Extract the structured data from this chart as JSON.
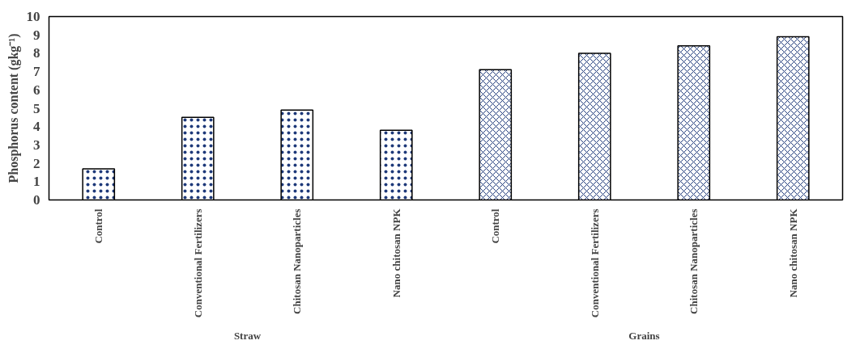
{
  "chart_data": {
    "type": "bar",
    "ylabel": "Phosphorus content (gkg⁻¹)",
    "categories": [
      "Control",
      "Conventional Fertilizers",
      "Chitosan Nanoparticles",
      "Nano chitosan NPK",
      "Control",
      "Conventional Fertilizers",
      "Chitosan Nanoparticles",
      "Nano chitosan NPK"
    ],
    "series": [
      {
        "color": "#ffffff",
        "values": [
          1.7,
          4.5,
          4.9,
          3.8,
          null,
          null,
          null,
          null
        ]
      },
      {
        "color": "#ffffff",
        "values": [
          null,
          null,
          null,
          null,
          7.1,
          8.0,
          8.4,
          8.9
        ]
      }
    ],
    "annotations": [
      "Straw",
      "Grains"
    ],
    "ylim": [
      0,
      10
    ],
    "yticks": [
      0,
      1,
      2,
      3,
      4,
      5,
      6,
      7,
      8,
      9,
      10
    ],
    "grid": false
  }
}
